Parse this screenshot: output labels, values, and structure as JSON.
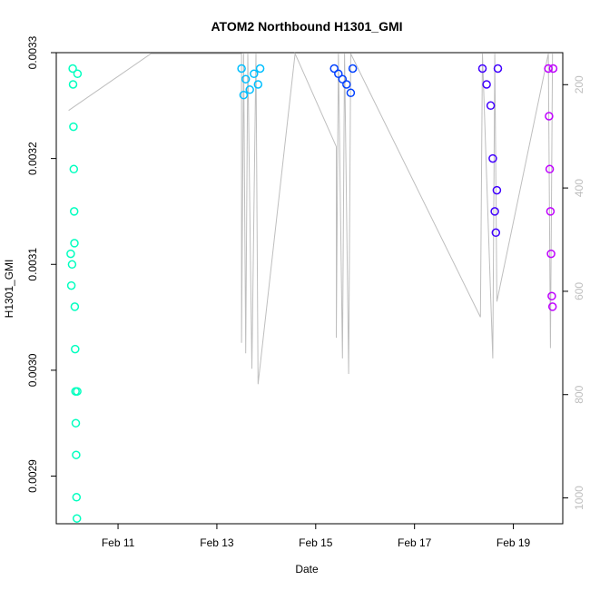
{
  "chart_data": {
    "type": "scatter",
    "title": "ATOM2 Northbound H1301_GMI",
    "xlabel": "Date",
    "ylabel": "H1301_GMI",
    "xlim": [
      "2023-02-09T18:00",
      "2023-02-20T00:00"
    ],
    "ylim": [
      0.002855,
      0.0033
    ],
    "y_ticks": [
      0.0029,
      0.003,
      0.0031,
      0.0032,
      0.0033
    ],
    "y_tick_labels": [
      "0.0029",
      "0.0030",
      "0.0031",
      "0.0032",
      "0.0033"
    ],
    "x_ticks": [
      "2023-02-11",
      "2023-02-13",
      "2023-02-15",
      "2023-02-17",
      "2023-02-19"
    ],
    "x_tick_labels": [
      "Feb 11",
      "Feb 13",
      "Feb 15",
      "Feb 17",
      "Feb 19"
    ],
    "y2_label": "",
    "y2_reversed": true,
    "y2_lim": [
      138,
      1050
    ],
    "y2_ticks": [
      200,
      400,
      600,
      800,
      1000
    ],
    "y2_tick_labels": [
      "200",
      "400",
      "600",
      "800",
      "1000"
    ],
    "grid": false,
    "legend": "none",
    "colors": {
      "pressure_line": "#bebebe",
      "axis": "#000000",
      "y2_text": "#bebebe"
    },
    "flights": [
      {
        "color": "#00FFBF",
        "series": [
          {
            "x": "2023-02-10T02:00",
            "y": 0.003285
          },
          {
            "x": "2023-02-10T02:10",
            "y": 0.00327
          },
          {
            "x": "2023-02-10T02:20",
            "y": 0.00323
          },
          {
            "x": "2023-02-10T02:30",
            "y": 0.00319
          },
          {
            "x": "2023-02-10T02:40",
            "y": 0.00315
          },
          {
            "x": "2023-02-10T02:50",
            "y": 0.00312
          },
          {
            "x": "2023-02-10T01:00",
            "y": 0.00311
          },
          {
            "x": "2023-02-10T01:20",
            "y": 0.00308
          },
          {
            "x": "2023-02-10T01:40",
            "y": 0.0031
          },
          {
            "x": "2023-02-10T03:00",
            "y": 0.00306
          },
          {
            "x": "2023-02-10T03:10",
            "y": 0.00302
          },
          {
            "x": "2023-02-10T03:20",
            "y": 0.00298
          },
          {
            "x": "2023-02-10T03:30",
            "y": 0.00295
          },
          {
            "x": "2023-02-10T03:40",
            "y": 0.00292
          },
          {
            "x": "2023-02-10T03:50",
            "y": 0.00288
          },
          {
            "x": "2023-02-10T04:00",
            "y": 0.00286
          },
          {
            "x": "2023-02-10T04:10",
            "y": 0.00298
          },
          {
            "x": "2023-02-10T04:20",
            "y": 0.00328
          }
        ]
      },
      {
        "color": "#00BFFF",
        "series": [
          {
            "x": "2023-02-13T12:00",
            "y": 0.003285
          },
          {
            "x": "2023-02-13T13:00",
            "y": 0.00326
          },
          {
            "x": "2023-02-13T14:00",
            "y": 0.003275
          },
          {
            "x": "2023-02-13T16:00",
            "y": 0.003265
          },
          {
            "x": "2023-02-13T18:00",
            "y": 0.00328
          },
          {
            "x": "2023-02-13T20:00",
            "y": 0.00327
          },
          {
            "x": "2023-02-13T21:00",
            "y": 0.003285
          }
        ]
      },
      {
        "color": "#0040FF",
        "series": [
          {
            "x": "2023-02-15T09:00",
            "y": 0.003285
          },
          {
            "x": "2023-02-15T11:00",
            "y": 0.00328
          },
          {
            "x": "2023-02-15T13:00",
            "y": 0.003275
          },
          {
            "x": "2023-02-15T15:00",
            "y": 0.00327
          },
          {
            "x": "2023-02-15T17:00",
            "y": 0.003262
          },
          {
            "x": "2023-02-15T18:00",
            "y": 0.003285
          }
        ]
      },
      {
        "color": "#4000FF",
        "series": [
          {
            "x": "2023-02-18T09:00",
            "y": 0.003285
          },
          {
            "x": "2023-02-18T11:00",
            "y": 0.00327
          },
          {
            "x": "2023-02-18T13:00",
            "y": 0.00325
          },
          {
            "x": "2023-02-18T14:00",
            "y": 0.0032
          },
          {
            "x": "2023-02-18T15:00",
            "y": 0.00315
          },
          {
            "x": "2023-02-18T15:30",
            "y": 0.00313
          },
          {
            "x": "2023-02-18T16:00",
            "y": 0.00317
          },
          {
            "x": "2023-02-18T16:30",
            "y": 0.003285
          }
        ]
      },
      {
        "color": "#BF00FF",
        "series": [
          {
            "x": "2023-02-19T17:00",
            "y": 0.003285
          },
          {
            "x": "2023-02-19T17:20",
            "y": 0.00324
          },
          {
            "x": "2023-02-19T17:40",
            "y": 0.00319
          },
          {
            "x": "2023-02-19T18:00",
            "y": 0.00315
          },
          {
            "x": "2023-02-19T18:20",
            "y": 0.00311
          },
          {
            "x": "2023-02-19T18:40",
            "y": 0.00307
          },
          {
            "x": "2023-02-19T19:00",
            "y": 0.00306
          },
          {
            "x": "2023-02-19T19:20",
            "y": 0.003285
          }
        ]
      }
    ],
    "pressure_series": [
      {
        "x": "2023-02-10T00:00",
        "y": 250
      },
      {
        "x": "2023-02-11T16:00",
        "y": 140
      },
      {
        "x": "2023-02-13T12:00",
        "y": 140
      },
      {
        "x": "2023-02-13T12:00",
        "y": 700
      },
      {
        "x": "2023-02-13T13:00",
        "y": 140
      },
      {
        "x": "2023-02-13T14:00",
        "y": 720
      },
      {
        "x": "2023-02-13T15:00",
        "y": 140
      },
      {
        "x": "2023-02-13T17:00",
        "y": 750
      },
      {
        "x": "2023-02-13T19:00",
        "y": 140
      },
      {
        "x": "2023-02-13T20:00",
        "y": 780
      },
      {
        "x": "2023-02-14T14:00",
        "y": 140
      },
      {
        "x": "2023-02-15T10:00",
        "y": 320
      },
      {
        "x": "2023-02-15T10:00",
        "y": 690
      },
      {
        "x": "2023-02-15T11:00",
        "y": 140
      },
      {
        "x": "2023-02-15T13:00",
        "y": 730
      },
      {
        "x": "2023-02-15T14:00",
        "y": 140
      },
      {
        "x": "2023-02-15T16:00",
        "y": 760
      },
      {
        "x": "2023-02-15T17:00",
        "y": 140
      },
      {
        "x": "2023-02-18T08:00",
        "y": 650
      },
      {
        "x": "2023-02-18T09:00",
        "y": 140
      },
      {
        "x": "2023-02-18T14:00",
        "y": 730
      },
      {
        "x": "2023-02-18T15:00",
        "y": 140
      },
      {
        "x": "2023-02-18T16:00",
        "y": 620
      },
      {
        "x": "2023-02-19T17:00",
        "y": 140
      },
      {
        "x": "2023-02-19T18:00",
        "y": 710
      },
      {
        "x": "2023-02-19T19:00",
        "y": 140
      }
    ]
  }
}
